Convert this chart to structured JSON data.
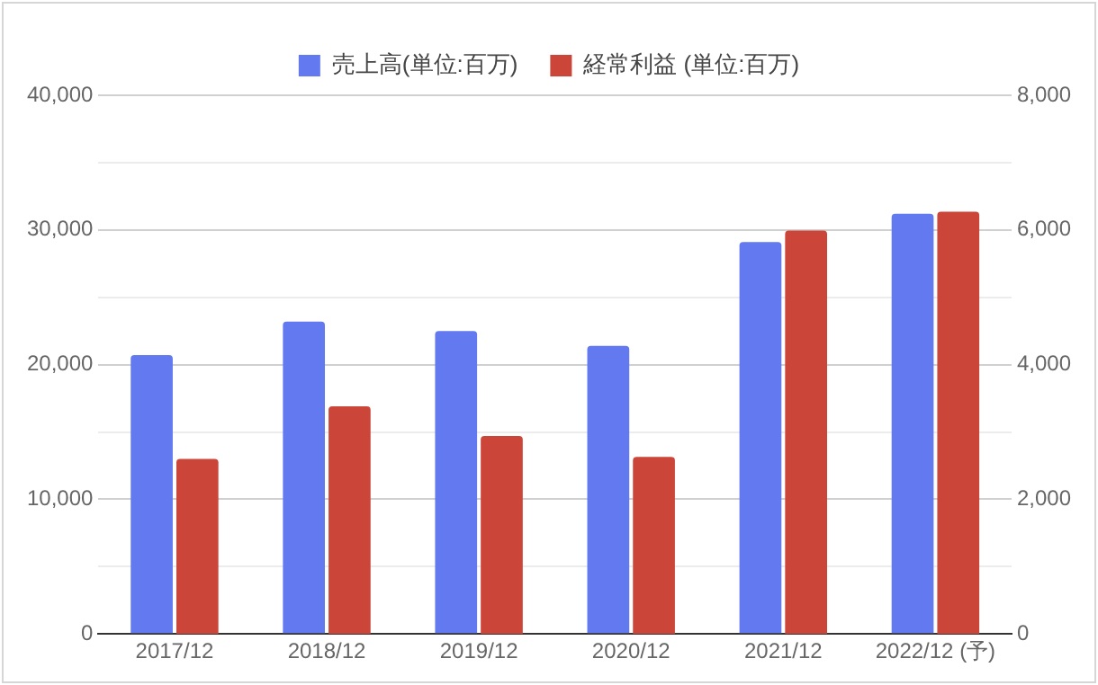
{
  "chart_data": {
    "type": "bar",
    "categories": [
      "2017/12",
      "2018/12",
      "2019/12",
      "2020/12",
      "2021/12",
      "2022/12 (予)"
    ],
    "series": [
      {
        "name": "売上高(単位:百万)",
        "color": "#6279f0",
        "values": [
          20700,
          23200,
          22500,
          21400,
          29100,
          31200
        ]
      },
      {
        "name": "経常利益 (単位:百万)",
        "color": "#cc4539",
        "values": [
          2600,
          3380,
          2940,
          2630,
          5990,
          6270
        ],
        "axis": "y2"
      }
    ],
    "ylim": [
      0,
      40000
    ],
    "yticks": [
      0,
      {
        "value": 5000,
        "label": null
      },
      {
        "value": 10000,
        "label": "10,000"
      },
      {
        "value": 15000,
        "label": null
      },
      {
        "value": 20000,
        "label": "20,000"
      },
      {
        "value": 25000,
        "label": null
      },
      {
        "value": 30000,
        "label": "30,000"
      },
      {
        "value": 35000,
        "label": null
      },
      {
        "value": 40000,
        "label": "40,000"
      }
    ],
    "y2lim": [
      0,
      8000
    ],
    "y2ticks": [
      0,
      {
        "value": 2000,
        "label": "2,000"
      },
      {
        "value": 4000,
        "label": "4,000"
      },
      {
        "value": 6000,
        "label": "6,000"
      },
      {
        "value": 8000,
        "label": "8,000"
      }
    ],
    "grid": "y",
    "legend": "top"
  }
}
